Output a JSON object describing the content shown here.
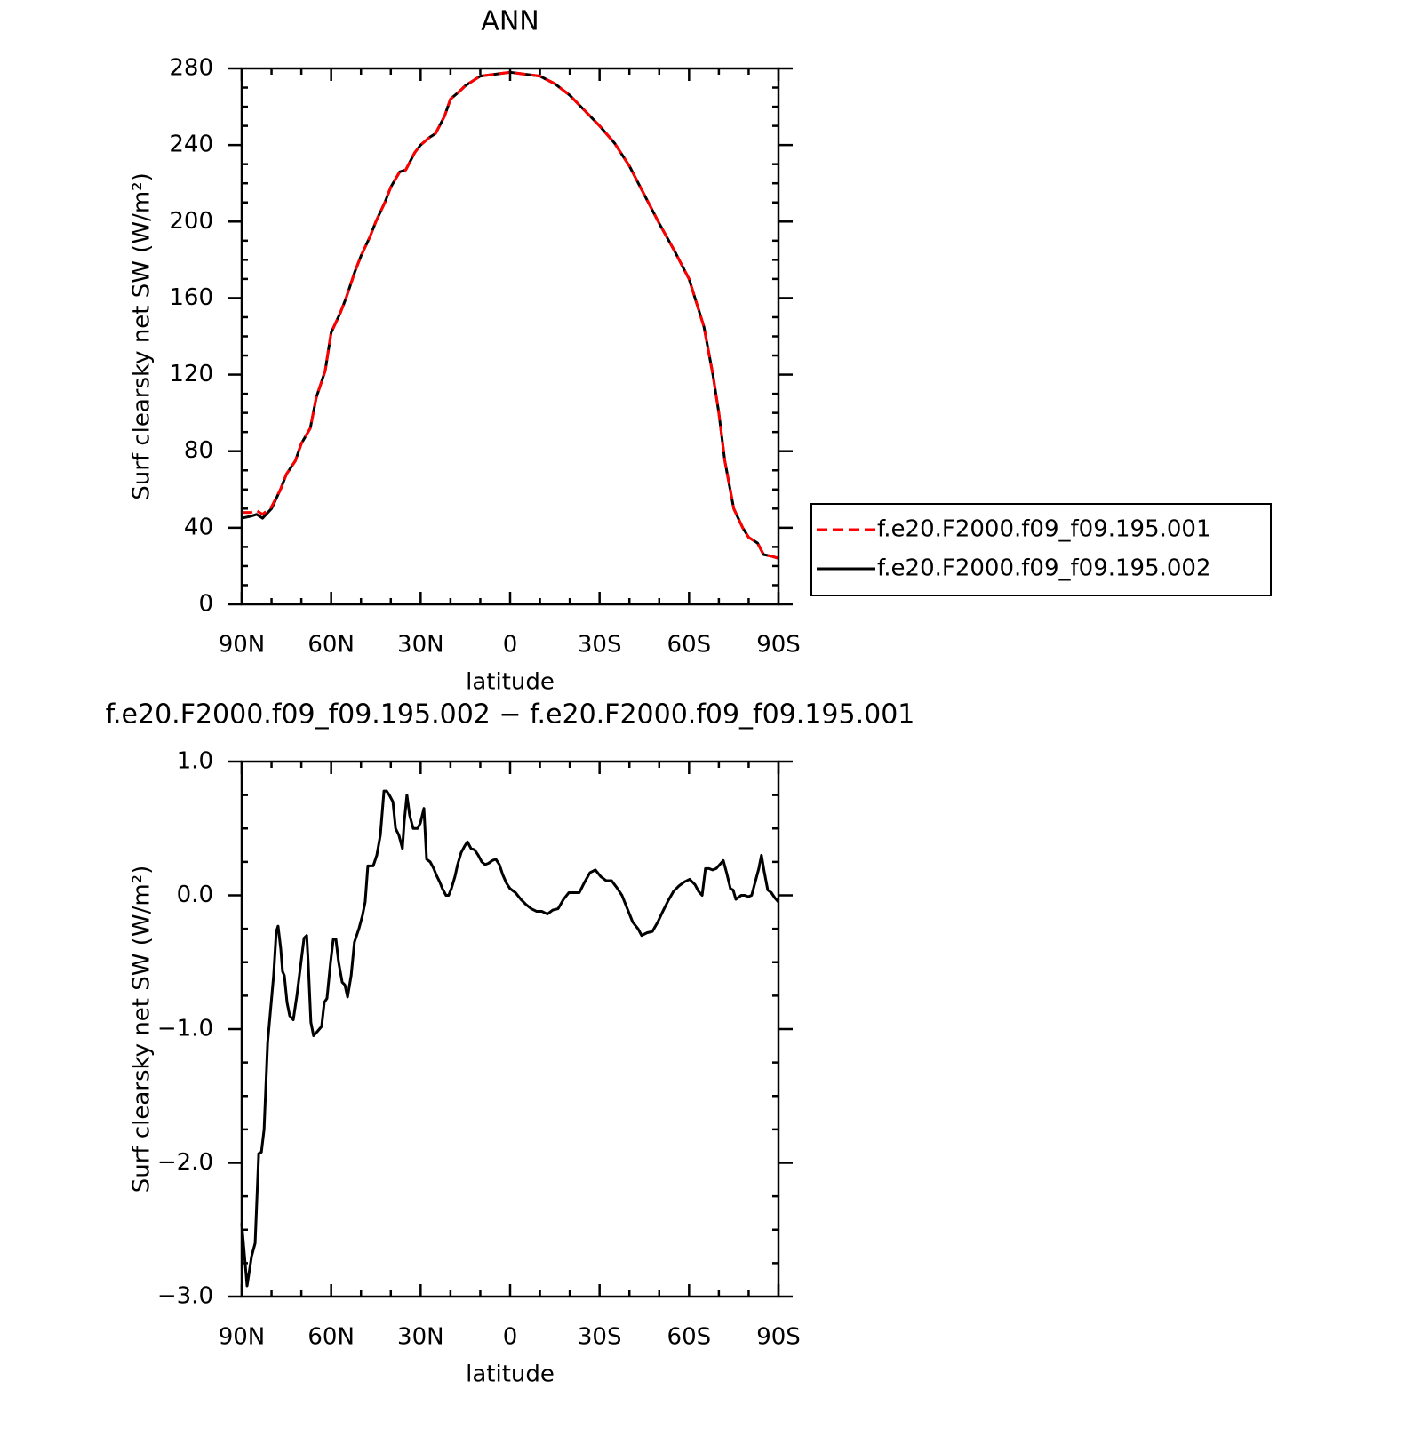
{
  "chart_data": [
    {
      "type": "line",
      "title": "ANN",
      "xlabel": "latitude",
      "ylabel": "Surf clearsky net SW (W/m²)",
      "x": [
        90,
        87,
        85,
        83,
        80,
        77,
        75,
        72,
        70,
        67,
        65,
        62,
        60,
        57,
        55,
        52,
        50,
        47,
        45,
        42,
        40,
        37,
        35,
        32,
        30,
        27,
        25,
        22,
        20,
        17,
        15,
        12,
        10,
        5,
        0,
        -5,
        -10,
        -15,
        -20,
        -25,
        -30,
        -35,
        -40,
        -45,
        -50,
        -55,
        -60,
        -65,
        -68,
        -70,
        -72,
        -75,
        -78,
        -80,
        -83,
        -85,
        -88,
        -90
      ],
      "series": [
        {
          "name": "f.e20.F2000.f09_f09.195.001",
          "color": "#ff0000",
          "dash": true,
          "values": [
            48,
            48,
            49,
            47,
            51,
            60,
            68,
            75,
            84,
            92,
            108,
            122,
            142,
            152,
            160,
            174,
            182,
            192,
            200,
            210,
            218,
            226,
            227,
            236,
            240,
            244,
            246,
            255,
            264,
            268,
            271,
            274,
            276,
            277,
            278,
            277,
            276,
            272,
            266,
            258,
            250,
            241,
            229,
            214,
            199,
            185,
            170,
            145,
            120,
            100,
            75,
            50,
            40,
            35,
            32,
            26,
            25,
            24
          ]
        },
        {
          "name": "f.e20.F2000.f09_f09.195.002",
          "color": "#000000",
          "dash": false,
          "values": [
            45,
            46,
            47,
            45,
            50,
            60,
            68,
            75,
            84,
            92,
            108,
            122,
            142,
            152,
            160,
            174,
            182,
            192,
            200,
            210,
            218,
            226,
            227,
            236,
            240,
            244,
            246,
            255,
            264,
            268,
            271,
            274,
            276,
            277,
            278,
            277,
            276,
            272,
            266,
            258,
            250,
            241,
            229,
            214,
            199,
            185,
            170,
            145,
            120,
            100,
            75,
            50,
            40,
            35,
            32,
            26,
            25,
            24
          ]
        }
      ],
      "xlim": [
        90,
        -90
      ],
      "xticks": [
        {
          "value": 90,
          "label": "90N"
        },
        {
          "value": 60,
          "label": "60N"
        },
        {
          "value": 30,
          "label": "30N"
        },
        0,
        {
          "value": -30,
          "label": "30S"
        },
        {
          "value": -60,
          "label": "60S"
        },
        {
          "value": -90,
          "label": "90S"
        }
      ],
      "ylim": [
        0,
        280
      ],
      "yticks": [
        0,
        40,
        80,
        120,
        160,
        200,
        240,
        280
      ],
      "legend": "right"
    },
    {
      "type": "line",
      "title": "f.e20.F2000.f09_f09.195.002 − f.e20.F2000.f09_f09.195.001",
      "xlabel": "latitude",
      "ylabel": "Surf clearsky net SW (W/m²)",
      "color": "#000000",
      "x": [
        90.0,
        88.2,
        86.7,
        85.5,
        84.3,
        83.4,
        82.5,
        81.3,
        80.1,
        79.3,
        78.4,
        77.8,
        76.9,
        76.3,
        75.7,
        74.8,
        73.9,
        72.7,
        71.5,
        69.1,
        68.2,
        67.7,
        66.8,
        65.9,
        64.7,
        63.2,
        62.3,
        61.4,
        60.2,
        59.3,
        58.4,
        57.5,
        56.3,
        55.4,
        54.5,
        53.3,
        52.2,
        50.7,
        49.5,
        48.6,
        47.7,
        46.8,
        45.9,
        44.7,
        43.5,
        42.3,
        41.4,
        40.5,
        39.3,
        38.4,
        37.3,
        36.1,
        35.5,
        34.6,
        33.7,
        32.5,
        31.0,
        30.1,
        28.9,
        28.0,
        26.8,
        25.6,
        24.7,
        23.6,
        22.7,
        21.5,
        20.6,
        19.7,
        18.5,
        17.6,
        16.4,
        15.2,
        14.3,
        13.1,
        11.9,
        10.7,
        9.5,
        8.4,
        7.2,
        6.0,
        4.8,
        3.6,
        2.4,
        1.2,
        0.0,
        -1.8,
        -3.6,
        -5.4,
        -7.1,
        -8.9,
        -10.7,
        -12.5,
        -14.3,
        -16.1,
        -17.9,
        -19.7,
        -21.4,
        -23.2,
        -25.0,
        -26.8,
        -28.6,
        -30.4,
        -32.2,
        -34.0,
        -35.7,
        -37.5,
        -39.3,
        -41.1,
        -42.9,
        -44.1,
        -45.9,
        -47.7,
        -49.5,
        -51.2,
        -53.0,
        -54.8,
        -56.6,
        -58.4,
        -60.2,
        -62.0,
        -63.2,
        -64.4,
        -65.5,
        -66.7,
        -67.9,
        -69.1,
        -70.3,
        -71.5,
        -72.7,
        -73.9,
        -74.8,
        -75.7,
        -77.5,
        -78.7,
        -79.9,
        -81.0,
        -82.2,
        -83.4,
        -84.3,
        -85.2,
        -86.4,
        -87.6,
        -88.8,
        -90.0
      ],
      "values": [
        -2.45,
        -2.92,
        -2.7,
        -2.6,
        -1.93,
        -1.92,
        -1.75,
        -1.1,
        -0.8,
        -0.6,
        -0.27,
        -0.23,
        -0.4,
        -0.57,
        -0.6,
        -0.8,
        -0.9,
        -0.93,
        -0.75,
        -0.32,
        -0.3,
        -0.5,
        -0.95,
        -1.05,
        -1.02,
        -0.98,
        -0.8,
        -0.77,
        -0.5,
        -0.33,
        -0.33,
        -0.5,
        -0.65,
        -0.67,
        -0.76,
        -0.6,
        -0.35,
        -0.25,
        -0.15,
        -0.05,
        0.22,
        0.22,
        0.22,
        0.3,
        0.45,
        0.78,
        0.78,
        0.75,
        0.7,
        0.5,
        0.45,
        0.35,
        0.55,
        0.75,
        0.6,
        0.5,
        0.5,
        0.54,
        0.65,
        0.27,
        0.25,
        0.2,
        0.15,
        0.1,
        0.05,
        0.0,
        0.0,
        0.05,
        0.14,
        0.23,
        0.32,
        0.37,
        0.4,
        0.35,
        0.34,
        0.3,
        0.25,
        0.23,
        0.24,
        0.26,
        0.27,
        0.23,
        0.15,
        0.09,
        0.05,
        0.02,
        -0.03,
        -0.07,
        -0.1,
        -0.12,
        -0.12,
        -0.14,
        -0.11,
        -0.1,
        -0.03,
        0.02,
        0.02,
        0.02,
        0.1,
        0.17,
        0.19,
        0.14,
        0.11,
        0.11,
        0.06,
        0.0,
        -0.1,
        -0.2,
        -0.25,
        -0.3,
        -0.28,
        -0.27,
        -0.2,
        -0.12,
        -0.04,
        0.03,
        0.07,
        0.1,
        0.12,
        0.08,
        0.03,
        0.0,
        0.2,
        0.2,
        0.19,
        0.2,
        0.23,
        0.26,
        0.16,
        0.05,
        0.04,
        -0.03,
        0.0,
        0.0,
        -0.01,
        0.0,
        0.1,
        0.2,
        0.3,
        0.18,
        0.04,
        0.02,
        -0.02,
        -0.05
      ],
      "xlim": [
        90,
        -90
      ],
      "xticks": [
        {
          "value": 90,
          "label": "90N"
        },
        {
          "value": 60,
          "label": "60N"
        },
        {
          "value": 30,
          "label": "30N"
        },
        0,
        {
          "value": -30,
          "label": "30S"
        },
        {
          "value": -60,
          "label": "60S"
        },
        {
          "value": -90,
          "label": "90S"
        }
      ],
      "ylim": [
        -3,
        1
      ],
      "yticks": [
        {
          "value": -3,
          "label": "−3.0"
        },
        {
          "value": -2,
          "label": "−2.0"
        },
        {
          "value": -1,
          "label": "−1.0"
        },
        {
          "value": 0,
          "label": "0.0"
        },
        {
          "value": 1,
          "label": "1.0"
        }
      ]
    }
  ]
}
